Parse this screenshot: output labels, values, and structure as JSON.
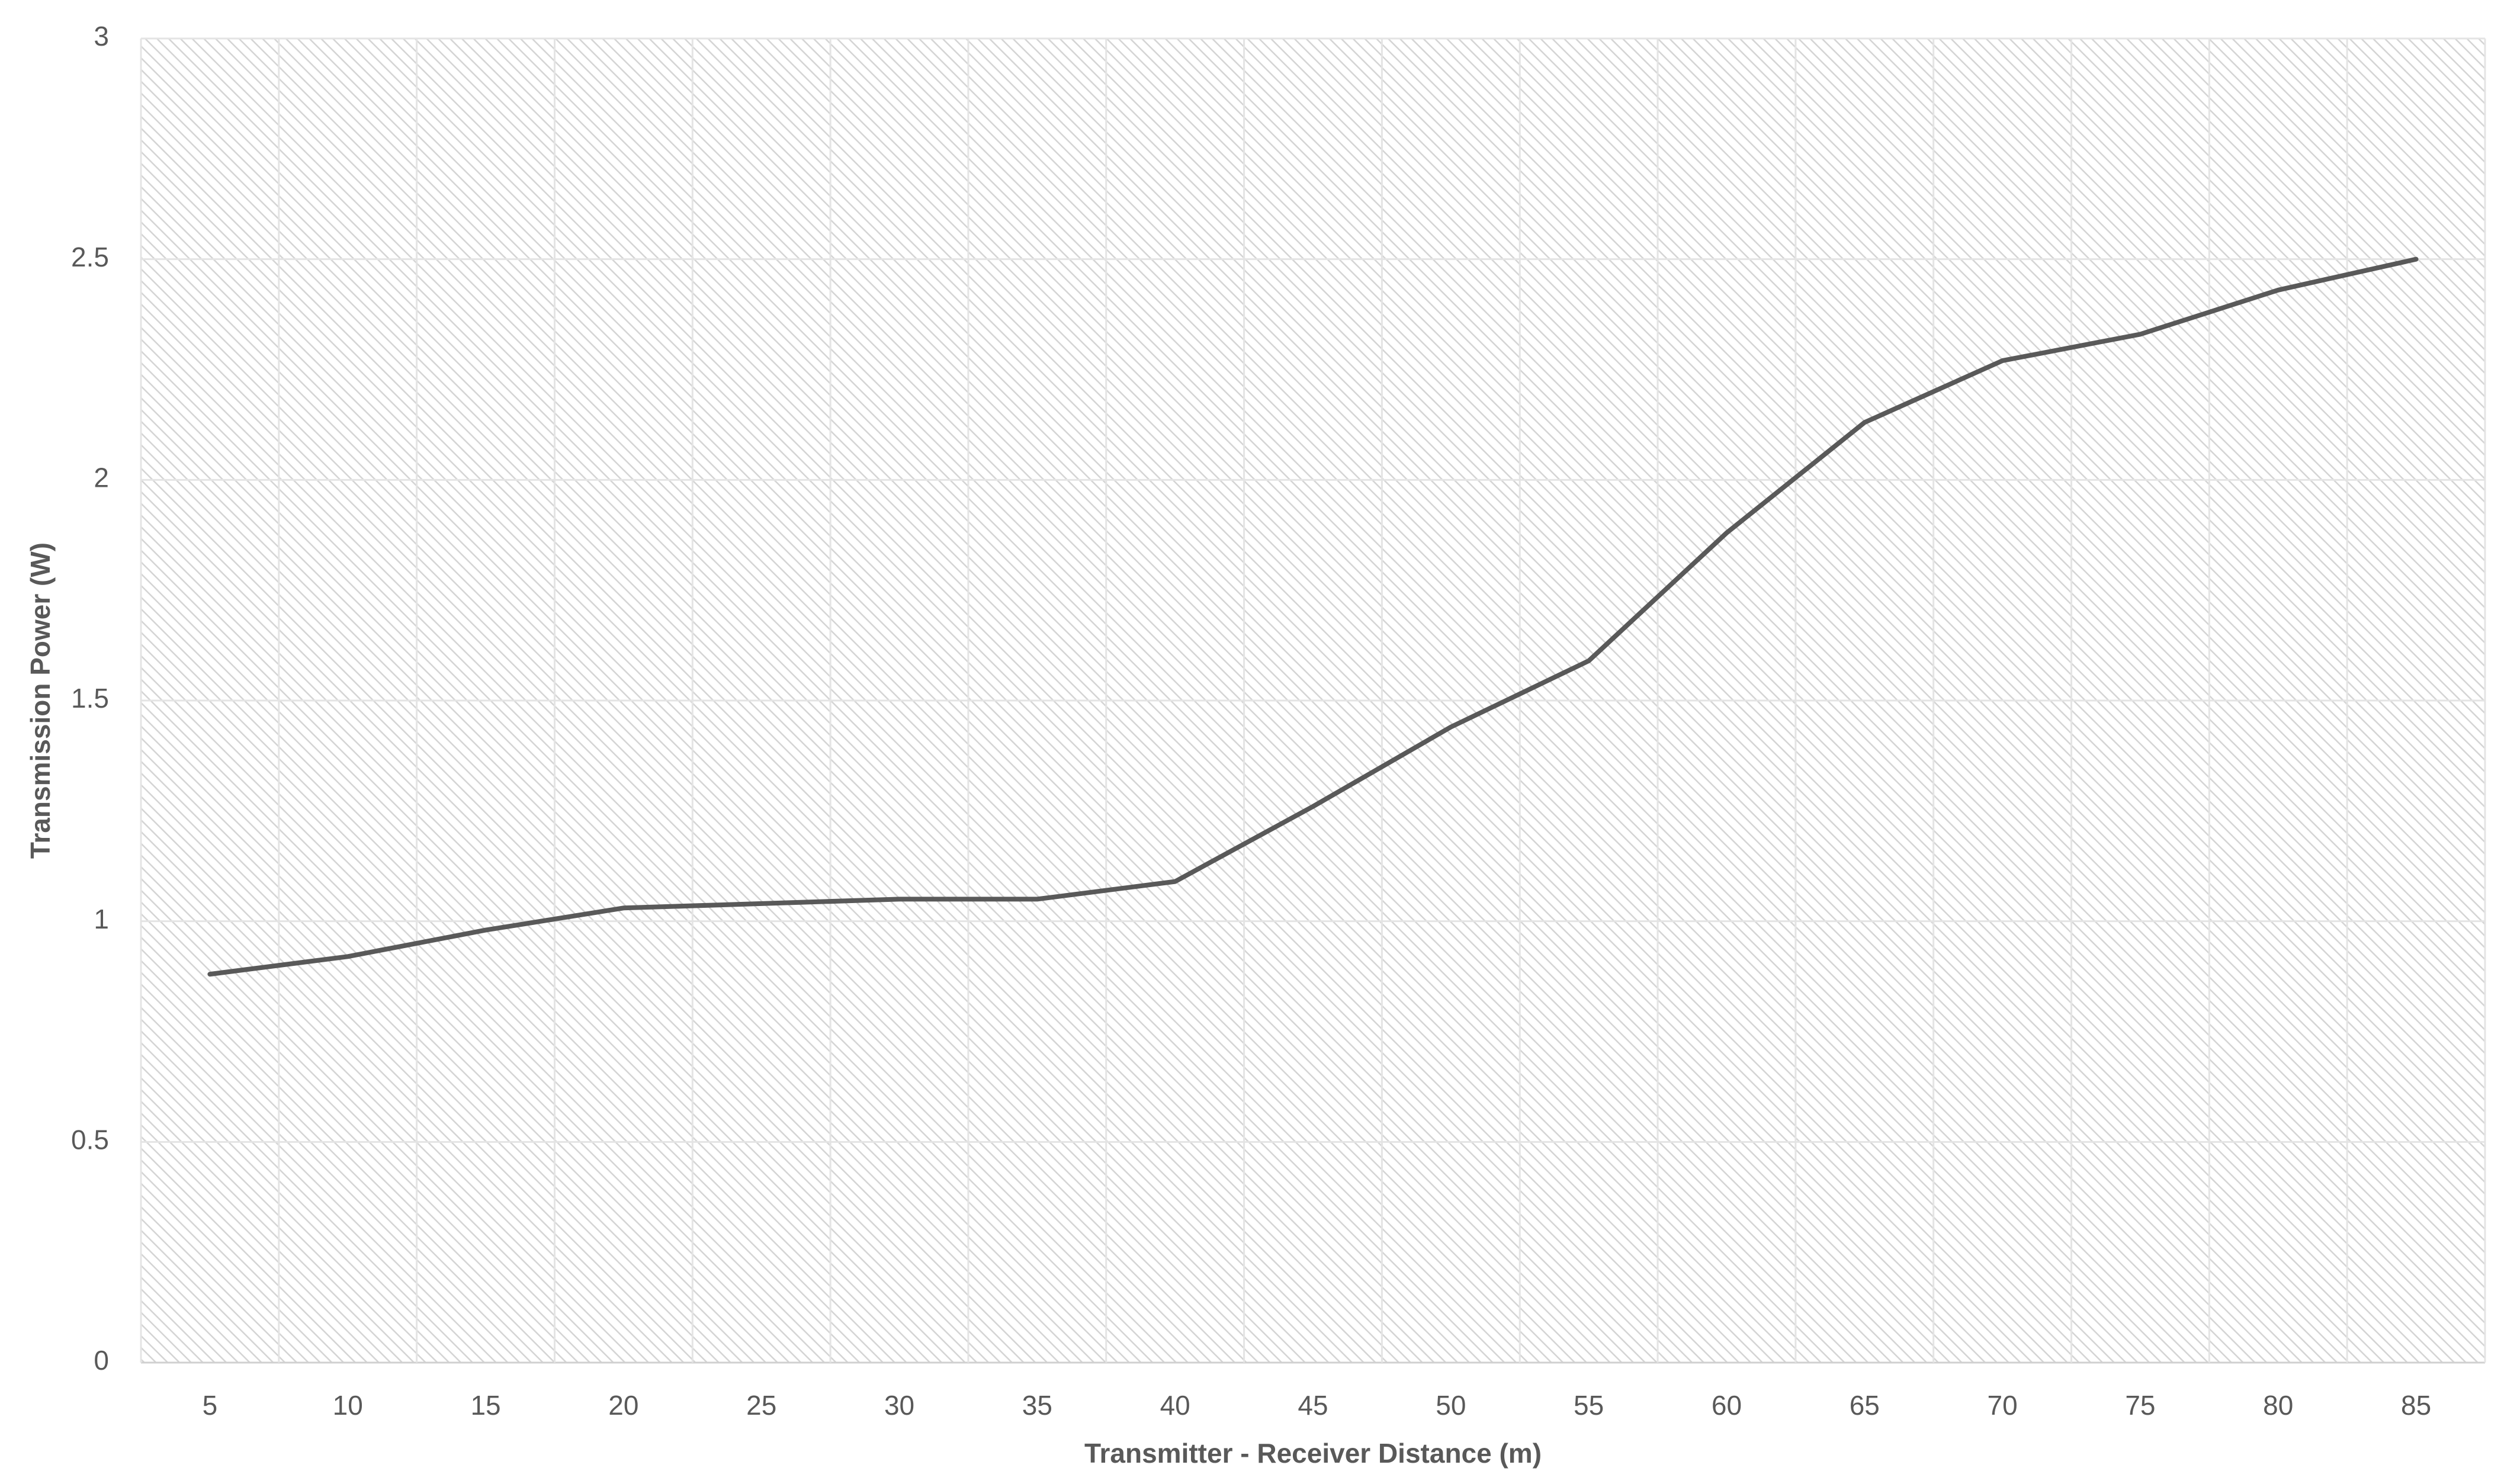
{
  "chart_data": {
    "type": "line",
    "x_label": "Transmitter - Receiver Distance (m)",
    "y_label": "Transmission Power (W)",
    "categories": [
      "5",
      "10",
      "15",
      "20",
      "25",
      "30",
      "35",
      "40",
      "45",
      "50",
      "55",
      "60",
      "65",
      "70",
      "75",
      "80",
      "85"
    ],
    "values": [
      0.88,
      0.92,
      0.98,
      1.03,
      1.04,
      1.05,
      1.05,
      1.09,
      1.26,
      1.44,
      1.59,
      1.88,
      2.13,
      2.27,
      2.33,
      2.43,
      2.5
    ],
    "color": "#595959",
    "ylim": [
      0,
      3
    ],
    "yticks": [
      0,
      0.5,
      1,
      1.5,
      2,
      2.5,
      3
    ],
    "grid": true
  }
}
